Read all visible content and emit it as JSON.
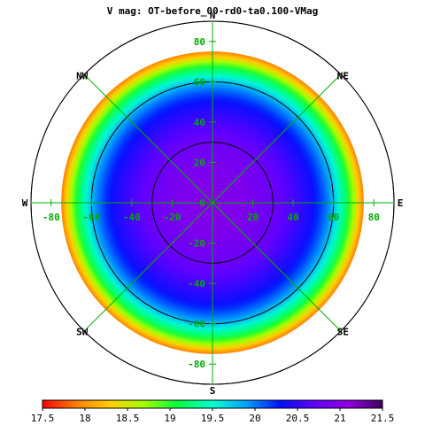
{
  "chart_data": {
    "type": "heatmap",
    "projection": "polar-sky",
    "title": "V mag: OT-before_00-rd0-ta0.100-VMag",
    "directions": [
      {
        "label": "N",
        "angle": 0
      },
      {
        "label": "NE",
        "angle": 45
      },
      {
        "label": "E",
        "angle": 90
      },
      {
        "label": "SE",
        "angle": 135
      },
      {
        "label": "S",
        "angle": 180
      },
      {
        "label": "SW",
        "angle": 225
      },
      {
        "label": "W",
        "angle": 270
      },
      {
        "label": "NW",
        "angle": 315
      }
    ],
    "axis": {
      "range": [
        -90,
        90
      ],
      "x_ticks": [
        "-80",
        "-60",
        "-40",
        "-20",
        "0",
        "20",
        "40",
        "60",
        "80"
      ],
      "y_ticks": [
        "80",
        "60",
        "40",
        "20",
        "0",
        "-20",
        "-40",
        "-60",
        "-80"
      ]
    },
    "data_extent_zenith_angle": 75,
    "contour_levels_zenith_angle": [
      30,
      60,
      90
    ],
    "magnitude_profile": {
      "zenith_angle": [
        0,
        15,
        30,
        40,
        50,
        57,
        62,
        67,
        70,
        73,
        75
      ],
      "magnitude": [
        21.0,
        20.95,
        20.8,
        20.6,
        20.35,
        20.0,
        19.6,
        19.1,
        18.7,
        18.2,
        17.9
      ]
    },
    "colorbar": {
      "min": 17.5,
      "max": 21.5,
      "ticks": [
        "17.5",
        "18",
        "18.5",
        "19",
        "19.5",
        "20",
        "20.5",
        "21",
        "21.5"
      ],
      "colors": [
        "#ff0000",
        "#ff8000",
        "#ffd000",
        "#a0ff00",
        "#00ff40",
        "#00ffd0",
        "#00a0ff",
        "#0010ff",
        "#6000ff",
        "#9000e0",
        "#400060"
      ]
    }
  }
}
